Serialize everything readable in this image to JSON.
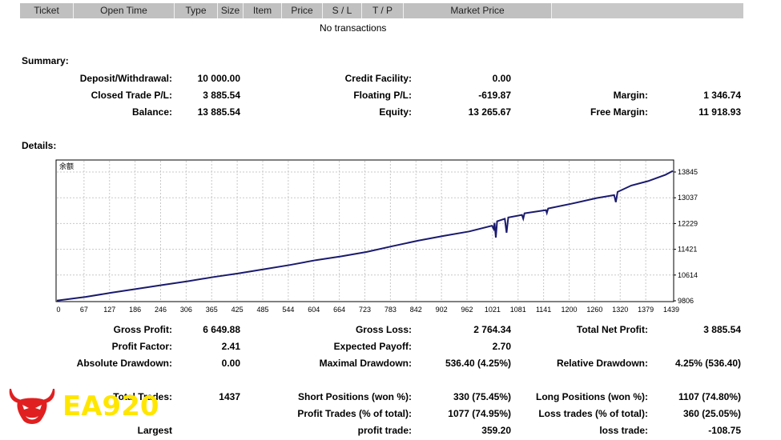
{
  "table": {
    "headers": [
      "Ticket",
      "Open Time",
      "Type",
      "Size",
      "Item",
      "Price",
      "S / L",
      "T / P",
      "Market Price",
      ""
    ],
    "empty_text": "No transactions"
  },
  "summary": {
    "title": "Summary:",
    "deposit_label": "Deposit/Withdrawal:",
    "deposit_value": "10 000.00",
    "credit_label": "Credit Facility:",
    "credit_value": "0.00",
    "closed_pl_label": "Closed Trade P/L:",
    "closed_pl_value": "3 885.54",
    "floating_label": "Floating P/L:",
    "floating_value": "-619.87",
    "margin_label": "Margin:",
    "margin_value": "1 346.74",
    "balance_label": "Balance:",
    "balance_value": "13 885.54",
    "equity_label": "Equity:",
    "equity_value": "13 265.67",
    "free_margin_label": "Free Margin:",
    "free_margin_value": "11 918.93"
  },
  "details": {
    "title": "Details:",
    "gross_profit_label": "Gross Profit:",
    "gross_profit_value": "6 649.88",
    "gross_loss_label": "Gross Loss:",
    "gross_loss_value": "2 764.34",
    "net_profit_label": "Total Net Profit:",
    "net_profit_value": "3 885.54",
    "profit_factor_label": "Profit Factor:",
    "profit_factor_value": "2.41",
    "expected_payoff_label": "Expected Payoff:",
    "expected_payoff_value": "2.70",
    "abs_dd_label": "Absolute Drawdown:",
    "abs_dd_value": "0.00",
    "max_dd_label": "Maximal Drawdown:",
    "max_dd_value": "536.40 (4.25%)",
    "rel_dd_label": "Relative Drawdown:",
    "rel_dd_value": "4.25% (536.40)",
    "total_trades_label": "Total Trades:",
    "total_trades_value": "1437",
    "short_label": "Short Positions (won %):",
    "short_value": "330 (75.45%)",
    "long_label": "Long Positions (won %):",
    "long_value": "1107 (74.80%)",
    "profit_trades_label": "Profit Trades (% of total):",
    "profit_trades_value": "1077 (74.95%)",
    "loss_trades_label": "Loss trades (% of total):",
    "loss_trades_value": "360 (25.05%)",
    "largest_label": "Largest",
    "largest_profit_label": "profit trade:",
    "largest_profit_value": "359.20",
    "largest_loss_label": "loss trade:",
    "largest_loss_value": "-108.75"
  },
  "logo": {
    "text": "EA920",
    "icon": "bull-head-icon",
    "color": "#ffe600",
    "icon_color": "#e02020"
  },
  "chart_data": {
    "type": "line",
    "title": "余额",
    "line_color": "#1a1a6e",
    "grid": true,
    "xlim": [
      0,
      1437
    ],
    "ylim": [
      9806,
      14053
    ],
    "x_ticks": [
      "0",
      "67",
      "127",
      "186",
      "246",
      "306",
      "365",
      "425",
      "485",
      "544",
      "604",
      "664",
      "723",
      "783",
      "842",
      "902",
      "962",
      "1021",
      "1081",
      "1141",
      "1200",
      "1260",
      "1320",
      "1379",
      "1439"
    ],
    "y_ticks": [
      "13845",
      "13037",
      "12229",
      "11421",
      "10614",
      "9806"
    ],
    "series": [
      {
        "points": [
          [
            0,
            9810
          ],
          [
            67,
            9930
          ],
          [
            127,
            10060
          ],
          [
            186,
            10180
          ],
          [
            246,
            10300
          ],
          [
            306,
            10420
          ],
          [
            365,
            10550
          ],
          [
            425,
            10670
          ],
          [
            485,
            10800
          ],
          [
            544,
            10930
          ],
          [
            604,
            11080
          ],
          [
            664,
            11200
          ],
          [
            723,
            11340
          ],
          [
            783,
            11520
          ],
          [
            842,
            11690
          ],
          [
            902,
            11840
          ],
          [
            962,
            11980
          ],
          [
            1015,
            12160
          ],
          [
            1019,
            12060
          ],
          [
            1021,
            12250
          ],
          [
            1024,
            11790
          ],
          [
            1027,
            12300
          ],
          [
            1045,
            12380
          ],
          [
            1049,
            11940
          ],
          [
            1053,
            12420
          ],
          [
            1085,
            12500
          ],
          [
            1088,
            12380
          ],
          [
            1091,
            12550
          ],
          [
            1141,
            12650
          ],
          [
            1143,
            12560
          ],
          [
            1146,
            12700
          ],
          [
            1200,
            12850
          ],
          [
            1260,
            13030
          ],
          [
            1300,
            13120
          ],
          [
            1304,
            12900
          ],
          [
            1308,
            13220
          ],
          [
            1340,
            13420
          ],
          [
            1379,
            13560
          ],
          [
            1420,
            13760
          ],
          [
            1437,
            13880
          ]
        ]
      }
    ]
  }
}
